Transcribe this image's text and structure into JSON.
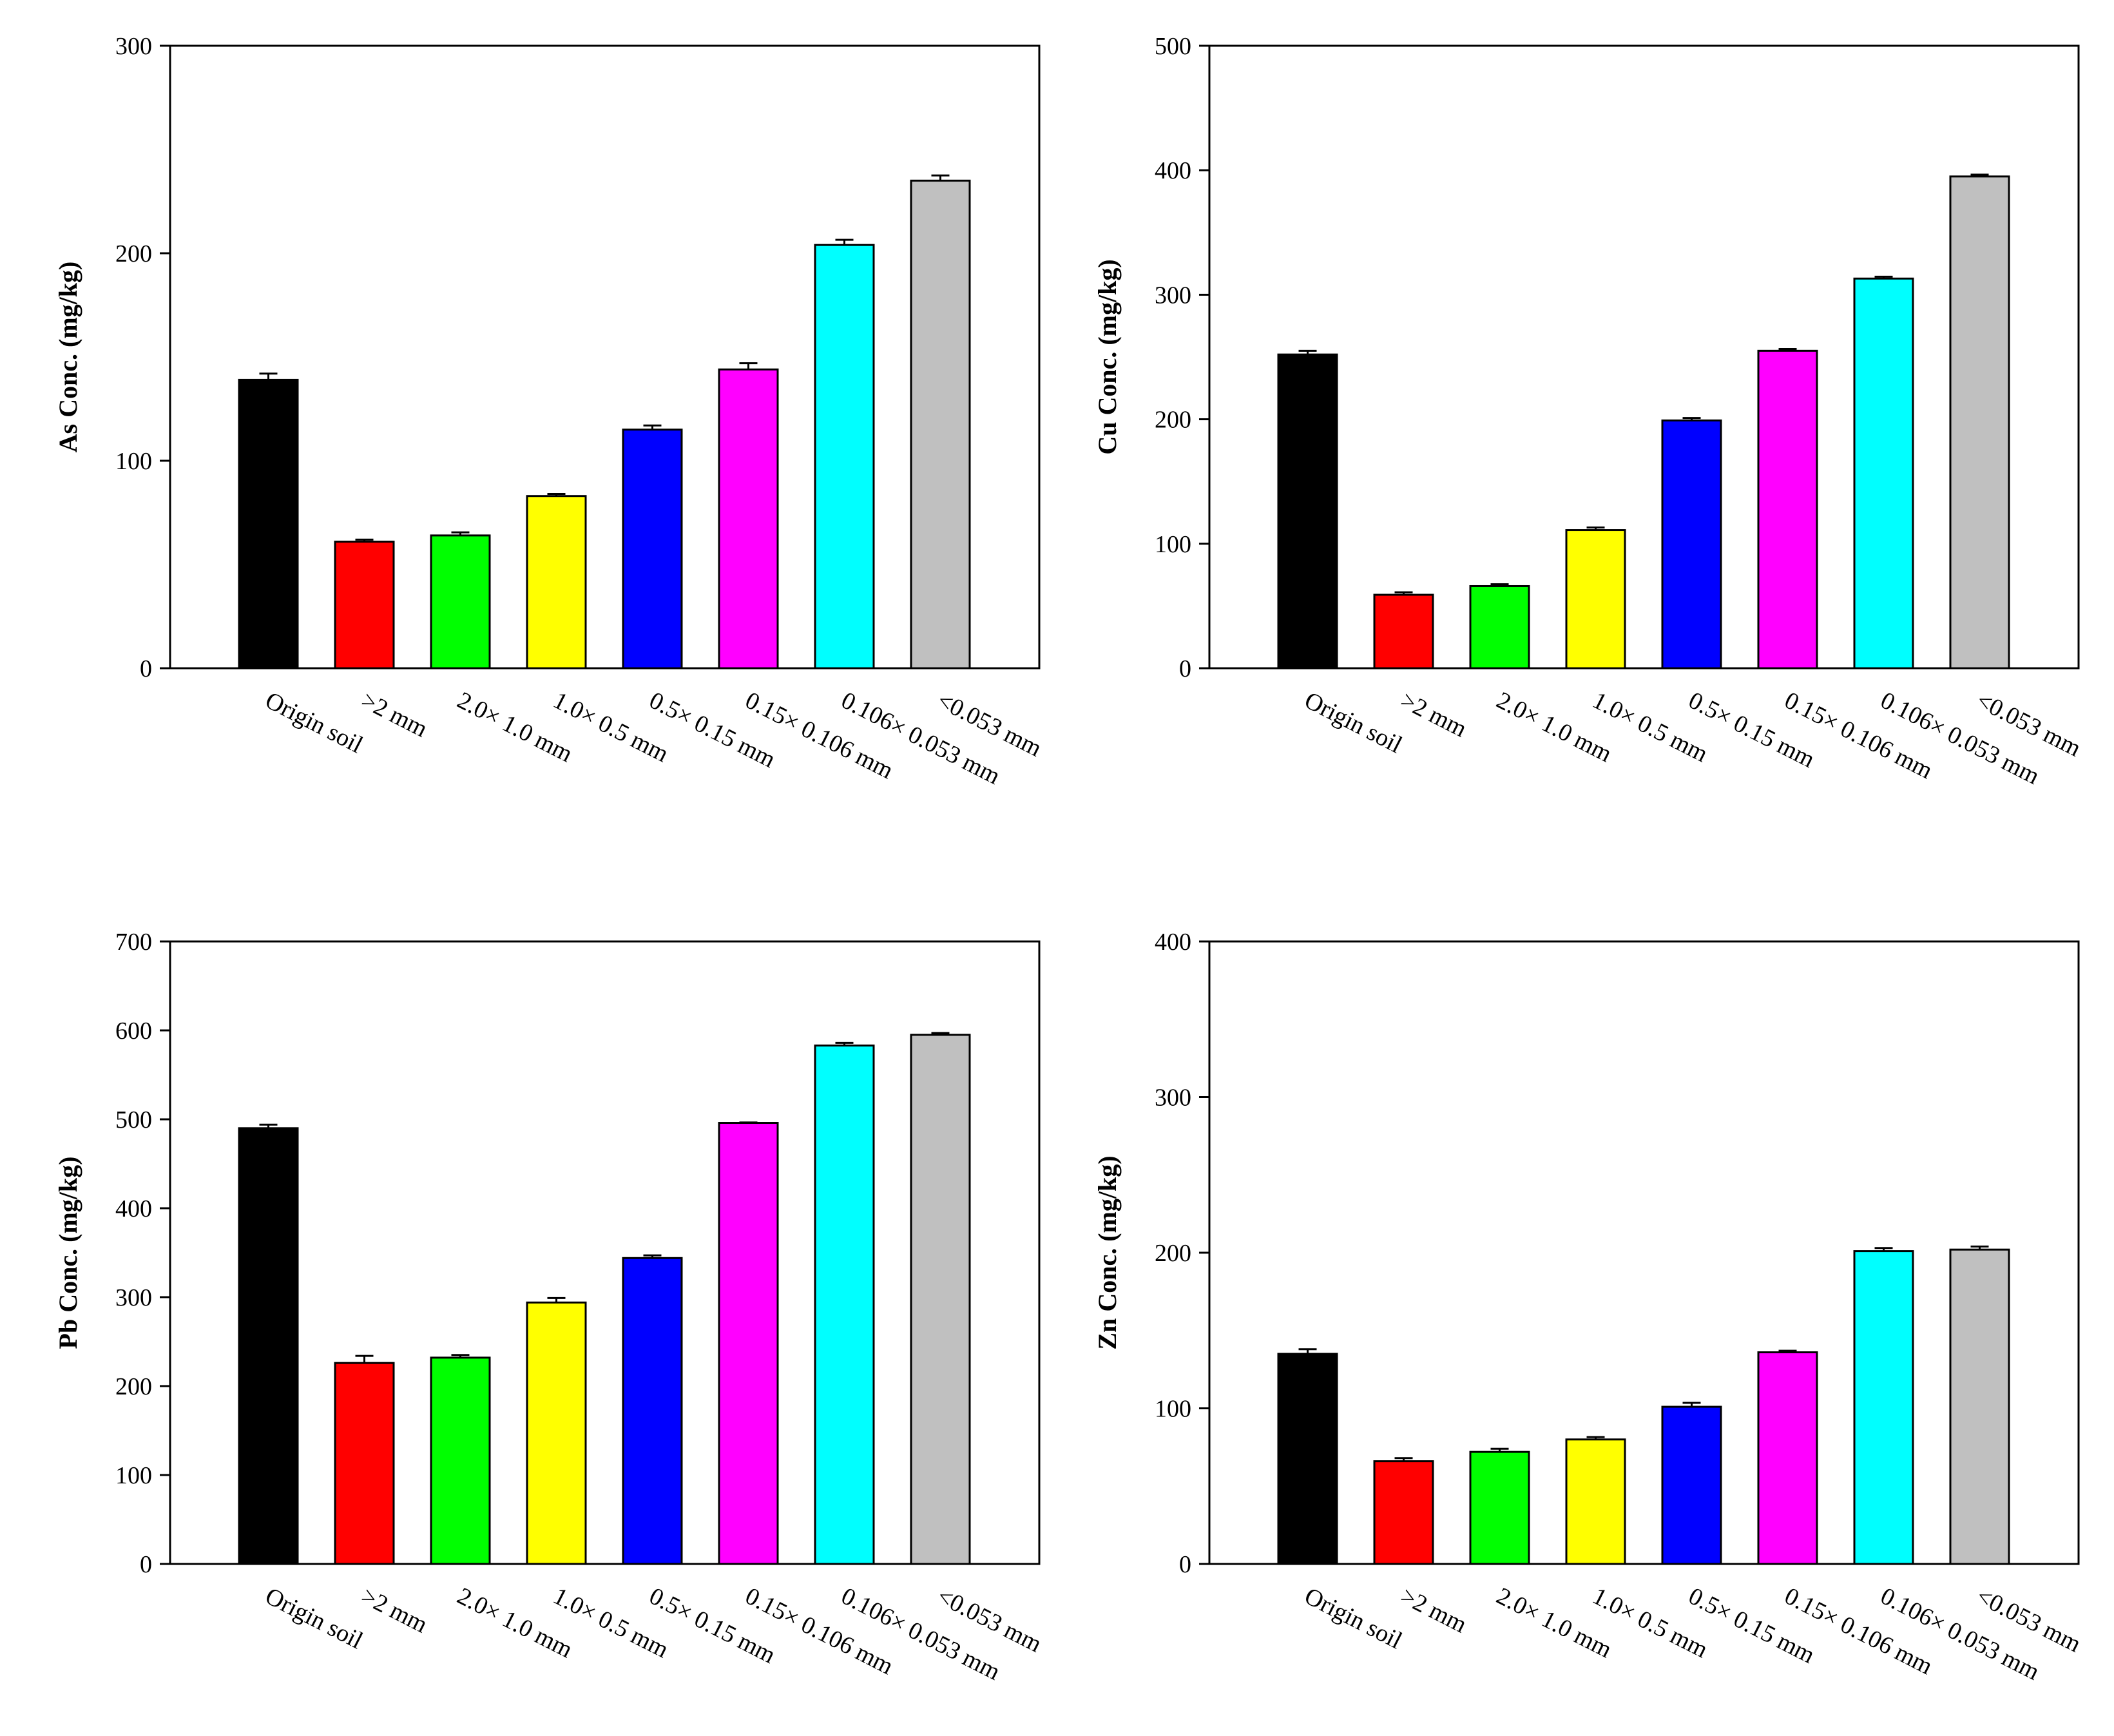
{
  "categories": [
    "Origin soil",
    ">2 mm",
    "2.0× 1.0 mm",
    "1.0× 0.5 mm",
    "0.5× 0.15 mm",
    "0.15× 0.106 mm",
    "0.106× 0.053 mm",
    "<0.053 mm"
  ],
  "bar_colors": [
    "#000000",
    "#ff0000",
    "#00ff00",
    "#ffff00",
    "#0000ff",
    "#ff00ff",
    "#00ffff",
    "#c0c0c0"
  ],
  "chart_data": [
    {
      "type": "bar",
      "id": "as",
      "title": "",
      "xlabel": "",
      "ylabel": "As Conc. (mg/kg)",
      "ylim": [
        0,
        300
      ],
      "yticks": [
        0,
        100,
        200,
        300
      ],
      "values": [
        139,
        61,
        64,
        83,
        115,
        144,
        204,
        235
      ],
      "errors": [
        3,
        1,
        1.5,
        1,
        2,
        3,
        2.5,
        2.5
      ]
    },
    {
      "type": "bar",
      "id": "cu",
      "title": "",
      "xlabel": "",
      "ylabel": "Cu Conc. (mg/kg)",
      "ylim": [
        0,
        500
      ],
      "yticks": [
        0,
        100,
        200,
        300,
        400,
        500
      ],
      "values": [
        252,
        59,
        66,
        111,
        199,
        255,
        313,
        395
      ],
      "errors": [
        3,
        2,
        1.5,
        2,
        2,
        1.5,
        1.5,
        1.5
      ]
    },
    {
      "type": "bar",
      "id": "pb",
      "title": "",
      "xlabel": "",
      "ylabel": "Pb Conc. (mg/kg)",
      "ylim": [
        0,
        700
      ],
      "yticks": [
        0,
        100,
        200,
        300,
        400,
        500,
        600,
        700
      ],
      "values": [
        490,
        226,
        232,
        294,
        344,
        496,
        583,
        595
      ],
      "errors": [
        4,
        8,
        3,
        5,
        3,
        0.5,
        3,
        2
      ]
    },
    {
      "type": "bar",
      "id": "zn",
      "title": "",
      "xlabel": "",
      "ylabel": "Zn Conc. (mg/kg)",
      "ylim": [
        0,
        400
      ],
      "yticks": [
        0,
        100,
        200,
        300,
        400
      ],
      "values": [
        135,
        66,
        72,
        80,
        101,
        136,
        201,
        202
      ],
      "errors": [
        3,
        2,
        2,
        1.5,
        2.5,
        1,
        2,
        2
      ]
    }
  ]
}
